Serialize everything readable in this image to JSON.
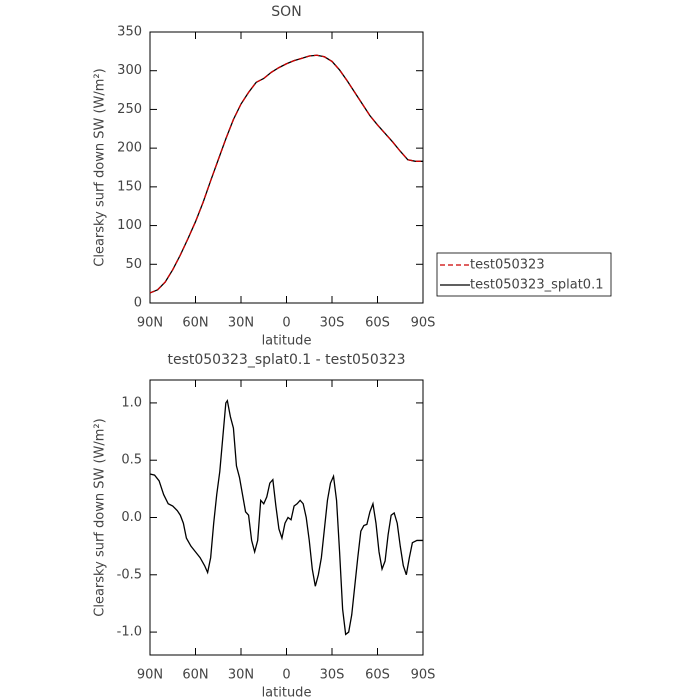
{
  "chart_data": [
    {
      "type": "line",
      "title": "SON",
      "xlabel": "latitude",
      "ylabel": "Clearsky surf down SW (W/m²)",
      "x": [
        90,
        85,
        80,
        75,
        70,
        65,
        60,
        55,
        50,
        45,
        40,
        35,
        30,
        25,
        20,
        15,
        10,
        5,
        0,
        -5,
        -10,
        -15,
        -20,
        -25,
        -30,
        -35,
        -40,
        -45,
        -50,
        -55,
        -60,
        -65,
        -70,
        -75,
        -80,
        -85,
        -90
      ],
      "series": [
        {
          "name": "test050323_splat0.1",
          "color": "#000000",
          "line_style": "solid",
          "values": [
            13,
            17,
            27,
            43,
            62,
            83,
            105,
            130,
            158,
            185,
            212,
            237,
            257,
            272,
            285,
            290,
            298,
            304,
            309,
            313,
            316,
            319,
            320,
            318,
            312,
            301,
            287,
            272,
            257,
            242,
            230,
            219,
            208,
            196,
            185,
            183,
            183
          ]
        },
        {
          "name": "test050323",
          "color": "#cc0000",
          "line_style": "dashed",
          "values": [
            13,
            17,
            27,
            43,
            62,
            83,
            105,
            130,
            158,
            185,
            212,
            237,
            257,
            272,
            285,
            290,
            298,
            304,
            309,
            313,
            316,
            319,
            320,
            318,
            312,
            301,
            287,
            272,
            257,
            242,
            230,
            219,
            208,
            196,
            185,
            183,
            183
          ]
        }
      ],
      "legend": "right",
      "xlim": [
        90,
        -90
      ],
      "xticks": [
        {
          "value": 90,
          "label": "90N"
        },
        {
          "value": 60,
          "label": "60N"
        },
        {
          "value": 30,
          "label": "30N"
        },
        0,
        {
          "value": -30,
          "label": "30S"
        },
        {
          "value": -60,
          "label": "60S"
        },
        {
          "value": -90,
          "label": "90S"
        }
      ],
      "ylim": [
        0,
        350
      ],
      "yticks": [
        0,
        50,
        100,
        150,
        200,
        250,
        300,
        350
      ]
    },
    {
      "type": "line",
      "title": "test050323_splat0.1 - test050323",
      "xlabel": "latitude",
      "ylabel": "Clearsky surf down SW (W/m²)",
      "x": [
        90,
        87,
        84,
        81,
        78,
        75,
        72,
        70,
        68,
        66,
        63,
        60,
        57,
        54,
        52,
        50,
        48,
        46,
        44,
        42,
        40,
        39,
        37,
        35,
        33,
        31,
        29,
        27,
        25,
        23,
        21,
        19,
        17,
        15,
        13,
        11,
        9,
        7,
        5,
        3,
        1,
        -1,
        -3,
        -5,
        -7,
        -9,
        -11,
        -13,
        -15,
        -17,
        -19,
        -21,
        -23,
        -25,
        -27,
        -29,
        -31,
        -33,
        -35,
        -37,
        -39,
        -41,
        -43,
        -45,
        -47,
        -49,
        -51,
        -53,
        -55,
        -57,
        -59,
        -61,
        -63,
        -65,
        -67,
        -69,
        -71,
        -73,
        -75,
        -77,
        -79,
        -81,
        -83,
        -86,
        -90
      ],
      "series": [
        {
          "color": "#000000",
          "line_style": "solid",
          "values": [
            0.38,
            0.37,
            0.32,
            0.2,
            0.12,
            0.1,
            0.06,
            0.02,
            -0.05,
            -0.18,
            -0.25,
            -0.3,
            -0.35,
            -0.42,
            -0.48,
            -0.35,
            -0.05,
            0.2,
            0.4,
            0.7,
            1.0,
            1.02,
            0.88,
            0.78,
            0.45,
            0.35,
            0.2,
            0.05,
            0.02,
            -0.2,
            -0.3,
            -0.2,
            0.15,
            0.12,
            0.18,
            0.3,
            0.33,
            0.1,
            -0.1,
            -0.18,
            -0.05,
            0.0,
            -0.02,
            0.1,
            0.12,
            0.15,
            0.12,
            0.0,
            -0.2,
            -0.45,
            -0.6,
            -0.5,
            -0.35,
            -0.1,
            0.15,
            0.3,
            0.36,
            0.15,
            -0.3,
            -0.8,
            -1.02,
            -1.0,
            -0.85,
            -0.6,
            -0.35,
            -0.12,
            -0.07,
            -0.06,
            0.05,
            0.12,
            -0.05,
            -0.3,
            -0.45,
            -0.38,
            -0.15,
            0.02,
            0.04,
            -0.05,
            -0.25,
            -0.42,
            -0.5,
            -0.35,
            -0.22,
            -0.2,
            -0.2
          ]
        }
      ],
      "xlim": [
        90,
        -90
      ],
      "xticks": [
        {
          "value": 90,
          "label": "90N"
        },
        {
          "value": 60,
          "label": "60N"
        },
        {
          "value": 30,
          "label": "30N"
        },
        0,
        {
          "value": -30,
          "label": "30S"
        },
        {
          "value": -60,
          "label": "60S"
        },
        {
          "value": -90,
          "label": "90S"
        }
      ],
      "ylim": [
        -1.2,
        1.2
      ],
      "yticks": [
        {
          "value": -1,
          "label": "-1.0"
        },
        -0.5,
        {
          "value": 0,
          "label": "0.0"
        },
        0.5,
        {
          "value": 1,
          "label": "1.0"
        }
      ]
    }
  ]
}
